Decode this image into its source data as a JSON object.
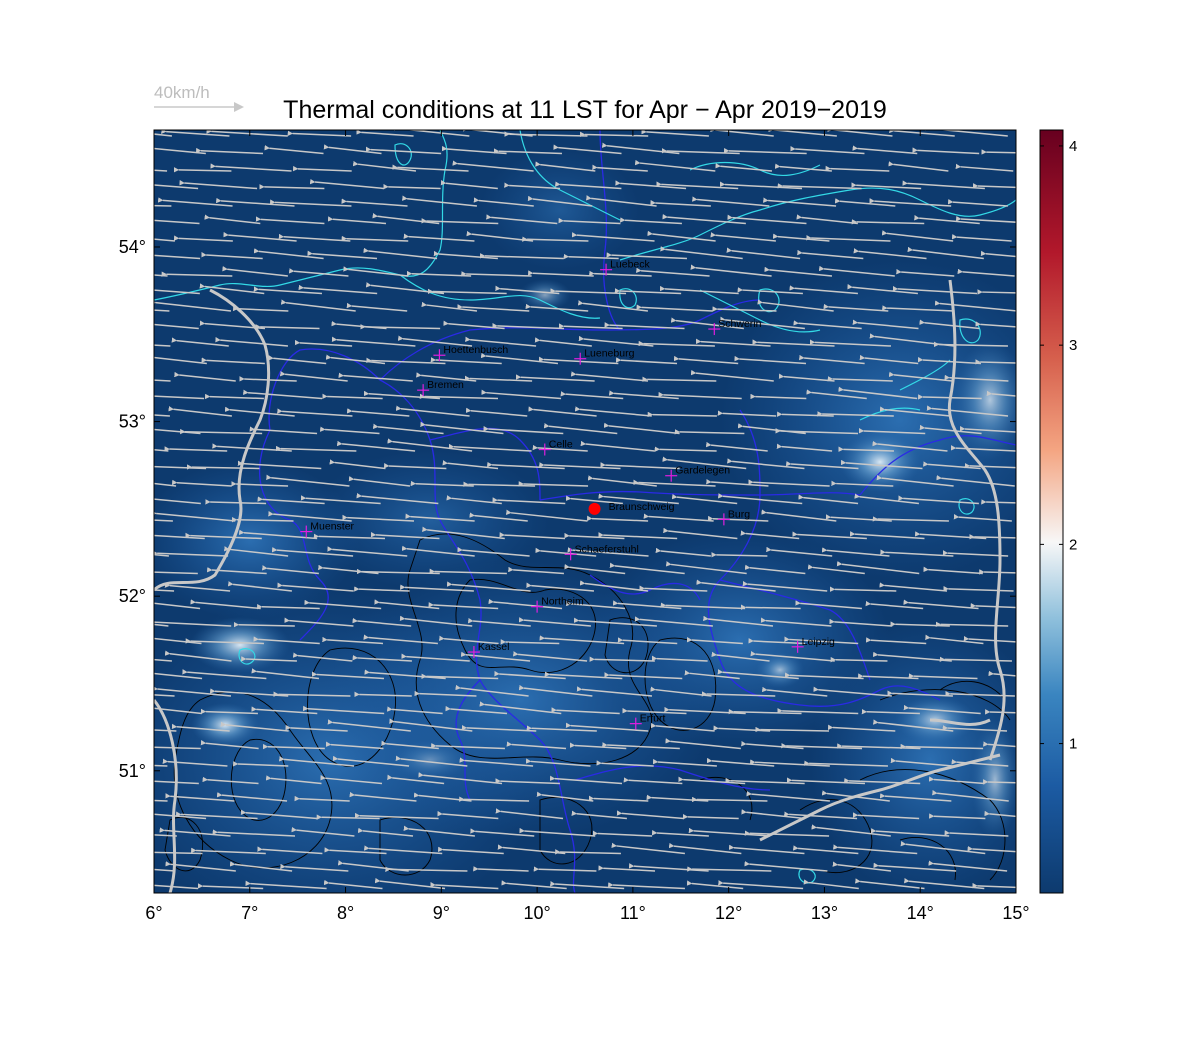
{
  "title": "Thermal conditions at 11 LST for Apr − Apr  2019−2019",
  "wind_reference": {
    "label": "40km/h",
    "color": "#c8c8c8"
  },
  "map": {
    "lon_range": [
      6,
      15
    ],
    "lat_range": [
      50.3,
      54.67
    ],
    "x_ticks": [
      {
        "v": 6,
        "label": "6°"
      },
      {
        "v": 7,
        "label": "7°"
      },
      {
        "v": 8,
        "label": "8°"
      },
      {
        "v": 9,
        "label": "9°"
      },
      {
        "v": 10,
        "label": "10°"
      },
      {
        "v": 11,
        "label": "11°"
      },
      {
        "v": 12,
        "label": "12°"
      },
      {
        "v": 13,
        "label": "13°"
      },
      {
        "v": 14,
        "label": "14°"
      },
      {
        "v": 15,
        "label": "15°"
      }
    ],
    "y_ticks": [
      {
        "v": 51,
        "label": "51°"
      },
      {
        "v": 52,
        "label": "52°"
      },
      {
        "v": 53,
        "label": "53°"
      },
      {
        "v": 54,
        "label": "54°"
      }
    ],
    "background_color": "#0d3a6e",
    "coast_color": "#33d9e6",
    "state_border_color": "#2a2ae6",
    "country_border_color": "#c8c8c8",
    "terrain_contour_color": "#000000",
    "arrow_color": "#c8c8c8",
    "prevailing_wind": "east-northeast",
    "marker_color": "#e01ee0",
    "site_color": "#ff0000"
  },
  "cities": [
    {
      "name": "Luebeck",
      "lon": 10.72,
      "lat": 53.87
    },
    {
      "name": "Schwerin",
      "lon": 11.85,
      "lat": 53.53
    },
    {
      "name": "Hoettenbusch",
      "lon": 8.98,
      "lat": 53.38
    },
    {
      "name": "Lueneburg",
      "lon": 10.45,
      "lat": 53.36
    },
    {
      "name": "Bremen",
      "lon": 8.81,
      "lat": 53.18
    },
    {
      "name": "Celle",
      "lon": 10.08,
      "lat": 52.84
    },
    {
      "name": "Gardelegen",
      "lon": 11.4,
      "lat": 52.69
    },
    {
      "name": "Burg",
      "lon": 11.95,
      "lat": 52.44
    },
    {
      "name": "Muenster",
      "lon": 7.59,
      "lat": 52.37
    },
    {
      "name": "Schaeferstuhl",
      "lon": 10.35,
      "lat": 52.24
    },
    {
      "name": "Northeim",
      "lon": 10.0,
      "lat": 51.94
    },
    {
      "name": "Kassel",
      "lon": 9.34,
      "lat": 51.68
    },
    {
      "name": "Leipzig",
      "lon": 12.72,
      "lat": 51.71
    },
    {
      "name": "Erfurt",
      "lon": 11.03,
      "lat": 51.27
    }
  ],
  "site": {
    "name": "Braunschweig",
    "lon": 10.6,
    "lat": 52.5
  },
  "colorbar": {
    "min": 0.25,
    "max": 4.08,
    "ticks": [
      {
        "v": 1,
        "label": "1"
      },
      {
        "v": 2,
        "label": "2"
      },
      {
        "v": 3,
        "label": "3"
      },
      {
        "v": 4,
        "label": "4"
      }
    ],
    "colors": [
      "#0d3a6e",
      "#1c5ba3",
      "#3a85c0",
      "#8fc0dc",
      "#f7f7f7",
      "#f4a582",
      "#d6604d",
      "#b2182b",
      "#67001f"
    ]
  }
}
